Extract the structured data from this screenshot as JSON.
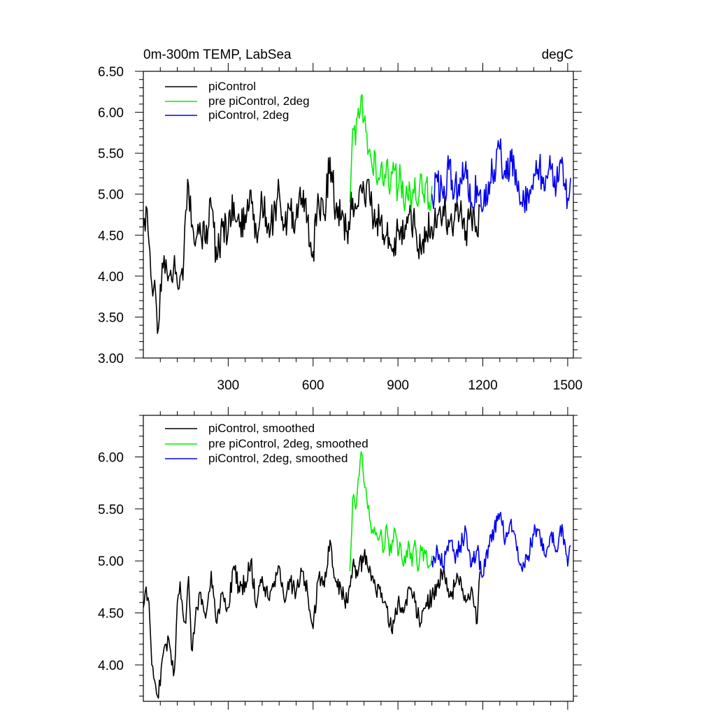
{
  "chart_data": [
    {
      "type": "line",
      "title_left": "0m-300m TEMP, LabSea",
      "title_right": "degC",
      "xlabel": "",
      "ylabel": "",
      "xlim": [
        0,
        1520
      ],
      "ylim": [
        3.0,
        6.5
      ],
      "xticks": [
        300,
        600,
        900,
        1200,
        1500
      ],
      "xtick_labels": [
        "300",
        "600",
        "900",
        "1200",
        "1500"
      ],
      "yticks": [
        3.0,
        3.5,
        4.0,
        4.5,
        5.0,
        5.5,
        6.0,
        6.5
      ],
      "ytick_labels": [
        "3.00",
        "3.50",
        "4.00",
        "4.50",
        "5.00",
        "5.50",
        "6.00",
        "6.50"
      ],
      "legend_position": "top-left",
      "series": [
        {
          "name": "piControl",
          "legend_label": "piControl",
          "color": "#000000",
          "x": [
            0,
            10,
            20,
            30,
            40,
            50,
            60,
            70,
            80,
            90,
            100,
            110,
            120,
            130,
            140,
            150,
            160,
            170,
            180,
            190,
            200,
            220,
            240,
            260,
            280,
            300,
            320,
            340,
            360,
            380,
            400,
            420,
            440,
            460,
            480,
            500,
            520,
            540,
            560,
            580,
            600,
            620,
            640,
            660,
            680,
            700,
            720,
            740,
            760,
            780,
            800,
            820,
            840,
            860,
            880,
            900,
            920,
            940,
            960,
            980,
            1000,
            1020,
            1040,
            1060,
            1080,
            1100,
            1120,
            1140,
            1160,
            1180,
            1190
          ],
          "values": [
            4.6,
            4.85,
            4.4,
            3.9,
            3.95,
            3.3,
            3.9,
            4.1,
            4.2,
            4.0,
            3.95,
            4.25,
            3.9,
            4.0,
            3.95,
            4.8,
            5.1,
            4.6,
            4.4,
            4.5,
            4.65,
            4.4,
            4.85,
            4.2,
            4.6,
            4.55,
            4.9,
            4.6,
            4.75,
            5.05,
            4.5,
            4.9,
            4.6,
            4.7,
            5.05,
            4.6,
            4.8,
            4.7,
            4.95,
            4.7,
            4.3,
            4.9,
            4.75,
            5.45,
            4.8,
            4.7,
            4.55,
            4.95,
            4.85,
            5.05,
            4.95,
            4.6,
            4.7,
            4.5,
            4.3,
            4.55,
            4.45,
            4.75,
            4.6,
            4.35,
            4.55,
            4.6,
            4.75,
            4.85,
            4.6,
            4.7,
            4.8,
            4.55,
            4.7,
            4.5,
            4.85
          ]
        },
        {
          "name": "pre piControl, 2deg",
          "legend_label": "pre piControl, 2deg",
          "color": "#00ee00",
          "x": [
            730,
            740,
            750,
            760,
            770,
            780,
            790,
            800,
            810,
            820,
            830,
            840,
            850,
            860,
            870,
            880,
            890,
            900,
            910,
            920,
            930,
            940,
            950,
            960,
            970,
            980,
            990,
            1000,
            1010,
            1020
          ],
          "values": [
            4.9,
            5.8,
            5.6,
            6.05,
            6.2,
            5.9,
            5.75,
            5.55,
            5.3,
            5.5,
            5.2,
            5.35,
            5.1,
            5.4,
            5.0,
            5.25,
            5.3,
            5.05,
            5.2,
            4.9,
            5.1,
            5.15,
            4.95,
            5.2,
            4.85,
            5.25,
            5.0,
            5.15,
            4.9,
            5.1
          ]
        },
        {
          "name": "piControl, 2deg",
          "legend_label": "piControl, 2deg",
          "color": "#0000ee",
          "x": [
            1020,
            1040,
            1060,
            1080,
            1100,
            1120,
            1140,
            1160,
            1180,
            1200,
            1220,
            1240,
            1260,
            1280,
            1300,
            1320,
            1340,
            1360,
            1380,
            1400,
            1420,
            1440,
            1460,
            1480,
            1500,
            1510
          ],
          "values": [
            5.0,
            5.15,
            4.95,
            5.3,
            5.05,
            5.2,
            5.4,
            4.9,
            5.1,
            4.8,
            5.15,
            5.3,
            5.55,
            5.2,
            5.4,
            5.1,
            4.85,
            5.0,
            5.25,
            5.35,
            5.05,
            5.3,
            5.1,
            5.45,
            4.95,
            5.2
          ]
        }
      ]
    },
    {
      "type": "line",
      "title_left": "",
      "title_right": "",
      "xlabel": "",
      "ylabel": "",
      "xlim": [
        0,
        1520
      ],
      "ylim": [
        3.65,
        6.4
      ],
      "xticks": [
        300,
        600,
        900,
        1200,
        1500
      ],
      "xtick_labels": [],
      "yticks": [
        4.0,
        4.5,
        5.0,
        5.5,
        6.0
      ],
      "ytick_labels": [
        "4.00",
        "4.50",
        "5.00",
        "5.50",
        "6.00"
      ],
      "legend_position": "top-left",
      "series": [
        {
          "name": "piControl, smoothed",
          "legend_label": "piControl, smoothed",
          "color": "#000000",
          "x": [
            0,
            10,
            20,
            30,
            40,
            50,
            60,
            70,
            80,
            90,
            100,
            110,
            120,
            130,
            140,
            150,
            160,
            170,
            180,
            190,
            200,
            220,
            240,
            260,
            280,
            300,
            320,
            340,
            360,
            380,
            400,
            420,
            440,
            460,
            480,
            500,
            520,
            540,
            560,
            580,
            600,
            620,
            640,
            660,
            680,
            700,
            720,
            740,
            760,
            780,
            800,
            820,
            840,
            860,
            880,
            900,
            920,
            940,
            960,
            980,
            1000,
            1020,
            1040,
            1060,
            1080,
            1100,
            1120,
            1140,
            1160,
            1180,
            1190
          ],
          "values": [
            4.55,
            4.75,
            4.6,
            4.0,
            3.85,
            3.7,
            3.8,
            4.1,
            4.2,
            4.25,
            4.0,
            3.95,
            4.6,
            4.8,
            4.5,
            4.4,
            4.85,
            4.15,
            4.3,
            4.55,
            4.7,
            4.45,
            4.9,
            4.4,
            4.7,
            4.55,
            4.95,
            4.7,
            4.8,
            5.0,
            4.55,
            4.85,
            4.65,
            4.75,
            4.95,
            4.6,
            4.8,
            4.7,
            4.9,
            4.7,
            4.35,
            4.85,
            4.75,
            5.2,
            4.8,
            4.7,
            4.6,
            4.95,
            4.9,
            5.05,
            4.95,
            4.75,
            4.65,
            4.55,
            4.3,
            4.6,
            4.5,
            4.75,
            4.6,
            4.4,
            4.6,
            4.65,
            4.75,
            4.9,
            4.65,
            4.75,
            4.85,
            4.6,
            4.75,
            4.4,
            4.9
          ]
        },
        {
          "name": "pre piControl, 2deg, smoothed",
          "legend_label": "pre piControl, 2deg, smoothed",
          "color": "#00ee00",
          "x": [
            730,
            740,
            750,
            760,
            770,
            780,
            790,
            800,
            810,
            820,
            830,
            840,
            850,
            860,
            870,
            880,
            890,
            900,
            910,
            920,
            930,
            940,
            950,
            960,
            970,
            980,
            990,
            1000,
            1010,
            1020
          ],
          "values": [
            4.9,
            5.6,
            5.5,
            5.8,
            6.05,
            5.75,
            5.6,
            5.4,
            5.3,
            5.25,
            5.2,
            5.3,
            5.1,
            5.35,
            5.05,
            5.2,
            5.3,
            5.05,
            5.15,
            4.95,
            5.1,
            5.15,
            4.95,
            5.2,
            4.9,
            5.15,
            5.0,
            5.1,
            4.95,
            5.05
          ]
        },
        {
          "name": "piControl, 2deg, smoothed",
          "legend_label": "piControl, 2deg, smoothed",
          "color": "#0000ee",
          "x": [
            1020,
            1040,
            1060,
            1080,
            1100,
            1120,
            1140,
            1160,
            1180,
            1200,
            1220,
            1240,
            1260,
            1280,
            1300,
            1320,
            1340,
            1360,
            1380,
            1400,
            1420,
            1440,
            1460,
            1480,
            1500,
            1510
          ],
          "values": [
            5.0,
            5.1,
            4.95,
            5.2,
            5.05,
            5.15,
            5.3,
            4.95,
            5.1,
            4.85,
            5.15,
            5.3,
            5.45,
            5.2,
            5.4,
            5.1,
            4.9,
            5.05,
            5.25,
            5.3,
            5.05,
            5.25,
            5.1,
            5.35,
            4.95,
            5.15
          ]
        }
      ]
    }
  ]
}
